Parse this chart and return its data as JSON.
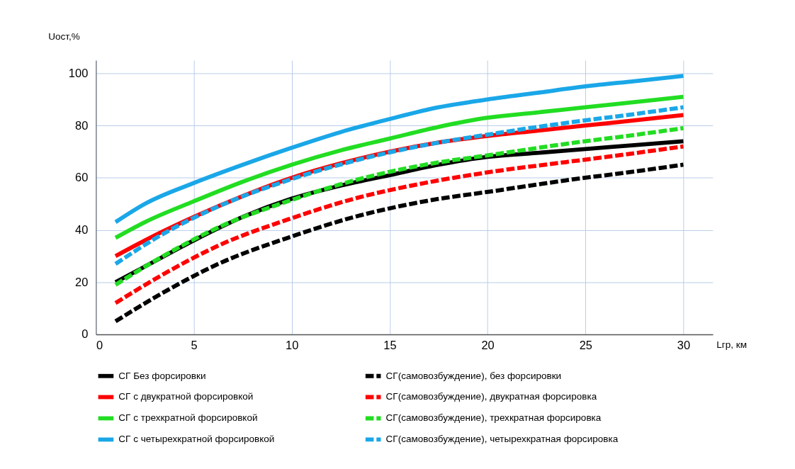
{
  "chart_data": {
    "type": "line",
    "xlabel": "Lгр, км",
    "ylabel": "Uост,%",
    "xlim": [
      0,
      31.5
    ],
    "xticks": [
      0,
      5,
      10,
      15,
      20,
      25,
      30
    ],
    "ylim": [
      0,
      105
    ],
    "yticks": [
      0,
      20,
      40,
      60,
      80,
      100
    ],
    "grid": true,
    "legend": "bottom",
    "marker": "none",
    "series": [
      {
        "name": "СГ Без форсировки",
        "color": "#000000",
        "line_style": "solid",
        "x": [
          1,
          2.5,
          5,
          7.5,
          10,
          12.5,
          15,
          17.5,
          20,
          22.5,
          25,
          27.5,
          30
        ],
        "values": [
          20,
          26,
          36,
          45,
          52,
          57,
          61,
          65,
          68,
          69.5,
          71,
          72.5,
          74
        ]
      },
      {
        "name": "СГ с двукратной форсировкой",
        "color": "#ff0000",
        "line_style": "solid",
        "x": [
          1,
          2.5,
          5,
          7.5,
          10,
          12.5,
          15,
          17.5,
          20,
          22.5,
          25,
          27.5,
          30
        ],
        "values": [
          30,
          36,
          45,
          53,
          60,
          65.5,
          70,
          73.5,
          76,
          78,
          80,
          82,
          84
        ]
      },
      {
        "name": "СГ с трехкратной форсировкой",
        "color": "#22dd22",
        "line_style": "solid",
        "x": [
          1,
          2.5,
          5,
          7.5,
          10,
          12.5,
          15,
          17.5,
          20,
          22.5,
          25,
          27.5,
          30
        ],
        "values": [
          37,
          43,
          51,
          58.5,
          65,
          70.5,
          75,
          79.5,
          83,
          85,
          87,
          89,
          91
        ]
      },
      {
        "name": "СГ с четырехкратной форсировкой",
        "color": "#1aa7e8",
        "line_style": "solid",
        "x": [
          1,
          2.5,
          5,
          7.5,
          10,
          12.5,
          15,
          17.5,
          20,
          22.5,
          25,
          27.5,
          30
        ],
        "values": [
          43,
          50,
          58,
          65,
          71.5,
          77.5,
          82.5,
          87,
          90,
          92.5,
          95,
          97,
          99
        ]
      },
      {
        "name": "СГ(самовозбуждение), без форсировки",
        "color": "#000000",
        "line_style": "dashed",
        "x": [
          1,
          3.2,
          6.4,
          9.8,
          13.2,
          16.8,
          20.4,
          24,
          27.6,
          30
        ],
        "values": [
          5,
          15,
          27.5,
          37,
          45,
          51,
          55,
          59,
          62.5,
          65
        ]
      },
      {
        "name": "СГ(самовозбуждение), двукратная форсировка",
        "color": "#ff0000",
        "line_style": "dashed",
        "x": [
          1,
          3.2,
          6.4,
          9.8,
          13.2,
          16.8,
          20.4,
          24,
          27.6,
          30
        ],
        "values": [
          12,
          22,
          34.5,
          44,
          52,
          58,
          62.5,
          66,
          69.5,
          72
        ]
      },
      {
        "name": "СГ(самовозбуждение), трехкратная форсировка",
        "color": "#22dd22",
        "line_style": "dashed",
        "x": [
          1,
          3.2,
          6.4,
          9.8,
          13.2,
          16.8,
          20.4,
          24,
          27.6,
          30
        ],
        "values": [
          19,
          29,
          41.5,
          51,
          59,
          65,
          69,
          73,
          76.5,
          79
        ]
      },
      {
        "name": "СГ(самовозбуждение), четырехкратная форсировка",
        "color": "#1aa7e8",
        "line_style": "dashed",
        "x": [
          1,
          3.2,
          6.4,
          9.8,
          13.2,
          16.8,
          20.4,
          24,
          27.6,
          30
        ],
        "values": [
          27,
          37.5,
          49.5,
          59,
          66.5,
          72.5,
          77,
          81,
          84.5,
          87
        ]
      }
    ]
  }
}
